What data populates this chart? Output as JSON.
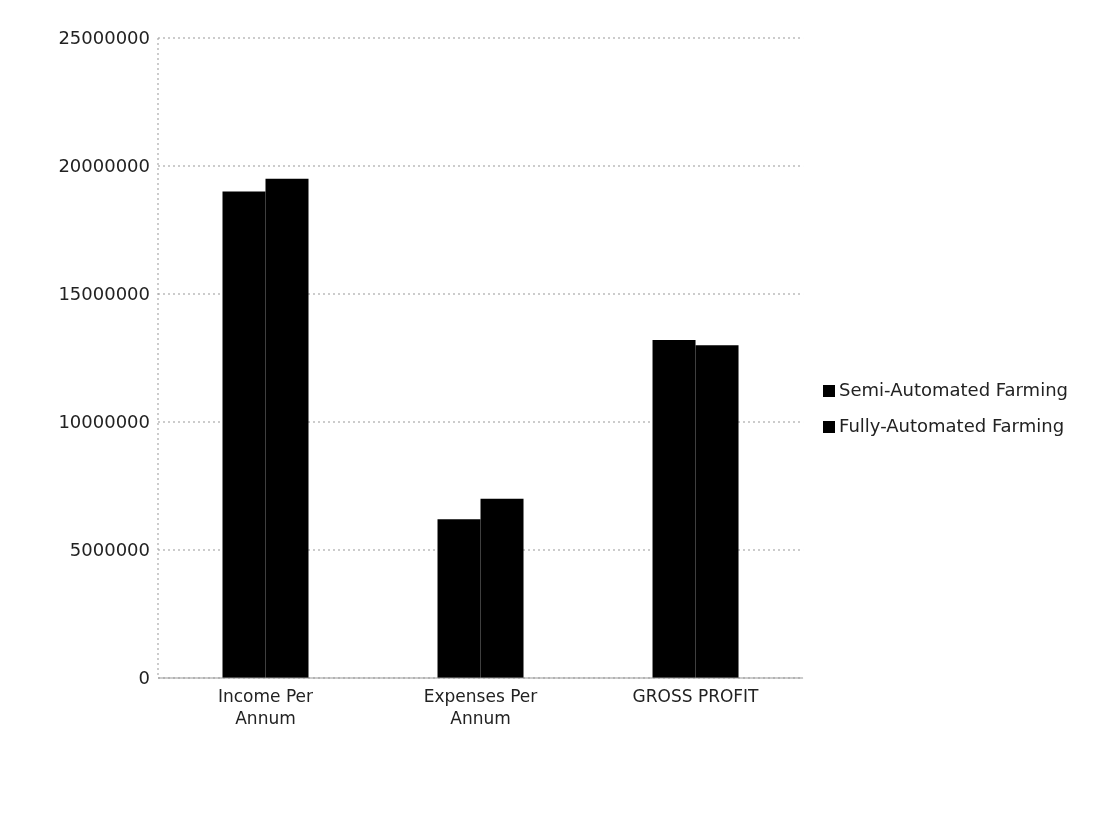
{
  "chart_data": {
    "type": "bar",
    "categories": [
      "Income Per Annum",
      "Expenses Per Annum",
      "GROSS PROFIT"
    ],
    "series": [
      {
        "name": "Semi-Automated Farming",
        "color": "#000000",
        "values": [
          19000000,
          6200000,
          13200000
        ]
      },
      {
        "name": "Fully-Automated Farming",
        "color": "#000000",
        "values": [
          19500000,
          7000000,
          13000000
        ]
      }
    ],
    "ylim": [
      0,
      25000000
    ],
    "yticks": [
      0,
      5000000,
      10000000,
      15000000,
      20000000,
      25000000
    ],
    "grid": "y",
    "legend": "right"
  }
}
